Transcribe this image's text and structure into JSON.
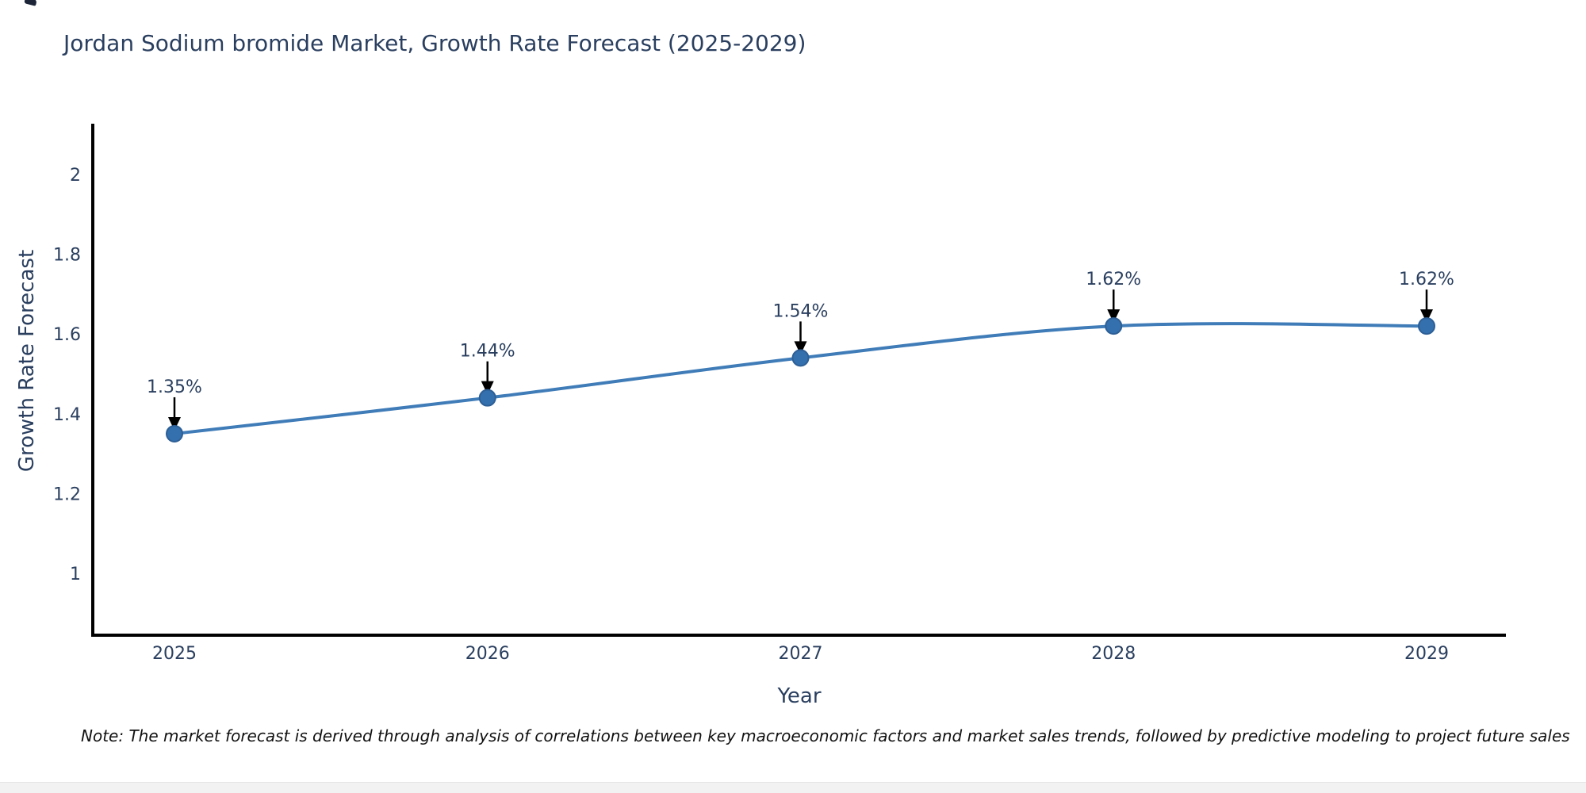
{
  "page": {
    "title": "Jordan Sodium bromide Market, Growth Rate Forecast (2025-2029)",
    "note": "Note: The market forecast is derived through analysis of correlations between key macroeconomic factors and market sales trends, followed by predictive modeling to project future sales"
  },
  "chart_data": {
    "type": "line",
    "title": "Jordan Sodium bromide Market, Growth Rate Forecast (2025-2029)",
    "x": [
      "2025",
      "2026",
      "2027",
      "2028",
      "2029"
    ],
    "series": [
      {
        "name": "Growth Rate Forecast",
        "values": [
          1.35,
          1.44,
          1.54,
          1.62,
          1.62
        ]
      }
    ],
    "point_labels": [
      "1.35%",
      "1.44%",
      "1.54%",
      "1.62%",
      "1.62%"
    ],
    "xlabel": "Year",
    "ylabel": "Growth Rate Forecast",
    "ylim": [
      0.84,
      2.12
    ],
    "yticks": [
      1,
      1.2,
      1.4,
      1.6,
      1.8,
      2
    ],
    "line_shape": "spline",
    "grid": false,
    "legend": "none",
    "colors": {
      "line": "#3f7cb8",
      "marker": "#3470ae",
      "marker_edge": "#2d5f96",
      "text": "#2a3f5f",
      "axis": "#000000",
      "arrow": "#000000",
      "note_text": "#111111"
    }
  }
}
